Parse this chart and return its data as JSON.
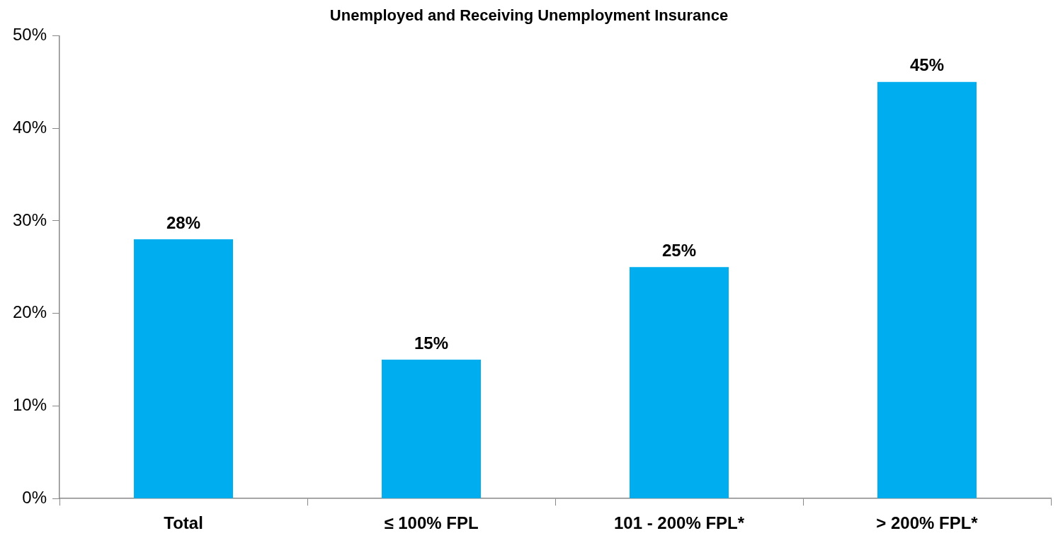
{
  "chart_data": {
    "type": "bar",
    "title": "Unemployed and Receiving Unemployment Insurance",
    "categories": [
      "Total",
      "≤ 100% FPL",
      "101 - 200% FPL*",
      "> 200% FPL*"
    ],
    "values": [
      28,
      15,
      25,
      45
    ],
    "value_labels": [
      "28%",
      "15%",
      "25%",
      "45%"
    ],
    "color": "#00aeef",
    "ylim": [
      0,
      50
    ],
    "yticks": [
      {
        "value": 0,
        "label": "0%"
      },
      {
        "value": 10,
        "label": "10%"
      },
      {
        "value": 20,
        "label": "20%"
      },
      {
        "value": 30,
        "label": "30%"
      },
      {
        "value": 40,
        "label": "40%"
      },
      {
        "value": 50,
        "label": "50%"
      }
    ],
    "grid": false,
    "legend": false
  }
}
